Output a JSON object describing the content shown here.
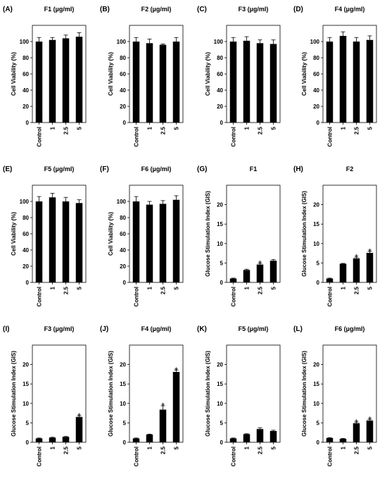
{
  "chart_data": [
    {
      "panel": "(A)",
      "title": "F1 (µg/ml)",
      "type": "bar",
      "categories": [
        "Control",
        "1",
        "2.5",
        "5"
      ],
      "values": [
        100,
        102,
        104,
        106
      ],
      "errors": [
        5,
        3,
        4,
        5
      ],
      "sig": [
        "",
        "",
        "",
        ""
      ],
      "ylabel": "Cell Viability (%)",
      "ylim": [
        0,
        120
      ],
      "yticks": [
        0,
        20,
        40,
        60,
        80,
        100
      ]
    },
    {
      "panel": "(B)",
      "title": "F2 (µg/ml)",
      "type": "bar",
      "categories": [
        "Control",
        "1",
        "2.5",
        "5"
      ],
      "values": [
        100,
        98,
        96,
        100
      ],
      "errors": [
        5,
        5,
        1,
        5
      ],
      "sig": [
        "",
        "",
        "",
        ""
      ],
      "ylabel": "Cell Viability (%)",
      "ylim": [
        0,
        120
      ],
      "yticks": [
        0,
        20,
        40,
        60,
        80,
        100
      ]
    },
    {
      "panel": "(C)",
      "title": "F3 (µg/ml)",
      "type": "bar",
      "categories": [
        "Control",
        "1",
        "2.5",
        "5"
      ],
      "values": [
        100,
        101,
        98,
        97
      ],
      "errors": [
        5,
        5,
        4,
        5
      ],
      "sig": [
        "",
        "",
        "",
        ""
      ],
      "ylabel": "Cell Viability (%)",
      "ylim": [
        0,
        120
      ],
      "yticks": [
        0,
        20,
        40,
        60,
        80,
        100
      ]
    },
    {
      "panel": "(D)",
      "title": "F4 (µg/ml)",
      "type": "bar",
      "categories": [
        "Control",
        "1",
        "2.5",
        "5"
      ],
      "values": [
        100,
        107,
        100,
        102
      ],
      "errors": [
        5,
        5,
        5,
        5
      ],
      "sig": [
        "",
        "",
        "",
        ""
      ],
      "ylabel": "Cell Viability (%)",
      "ylim": [
        0,
        120
      ],
      "yticks": [
        0,
        20,
        40,
        60,
        80,
        100
      ]
    },
    {
      "panel": "(E)",
      "title": "F5 (µg/ml)",
      "type": "bar",
      "categories": [
        "Control",
        "1",
        "2.5",
        "5"
      ],
      "values": [
        100,
        105,
        100,
        98
      ],
      "errors": [
        6,
        5,
        5,
        4
      ],
      "sig": [
        "",
        "",
        "",
        ""
      ],
      "ylabel": "Cell Viability (%)",
      "ylim": [
        0,
        120
      ],
      "yticks": [
        0,
        20,
        40,
        60,
        80,
        100
      ]
    },
    {
      "panel": "(F)",
      "title": "F6 (µg/ml)",
      "type": "bar",
      "categories": [
        "Control",
        "1",
        "2.5",
        "5"
      ],
      "values": [
        100,
        96,
        97,
        102
      ],
      "errors": [
        6,
        4,
        4,
        5
      ],
      "sig": [
        "",
        "",
        "",
        ""
      ],
      "ylabel": "Cell Viability (%)",
      "ylim": [
        0,
        120
      ],
      "yticks": [
        0,
        20,
        40,
        60,
        80,
        100
      ]
    },
    {
      "panel": "(G)",
      "title": "F1",
      "type": "bar",
      "categories": [
        "Control",
        "1",
        "2.5",
        "5"
      ],
      "values": [
        1.0,
        3.2,
        4.6,
        5.6
      ],
      "errors": [
        0.1,
        0.2,
        0.3,
        0.3
      ],
      "sig": [
        "",
        "",
        "*",
        ""
      ],
      "ylabel": "Glucose Stimulation Index (GIS)",
      "ylim": [
        0,
        25
      ],
      "yticks": [
        0,
        5,
        10,
        15,
        20
      ]
    },
    {
      "panel": "(H)",
      "title": "F2",
      "type": "bar",
      "categories": [
        "Control",
        "1",
        "2.5",
        "5"
      ],
      "values": [
        1.0,
        4.8,
        6.2,
        7.6
      ],
      "errors": [
        0.1,
        0.1,
        0.3,
        0.4
      ],
      "sig": [
        "",
        "",
        "*",
        "*"
      ],
      "ylabel": "Glucose Stimulation Index (GIS)",
      "ylim": [
        0,
        25
      ],
      "yticks": [
        0,
        5,
        10,
        15,
        20
      ]
    },
    {
      "panel": "(I)",
      "title": "F3 (µg/ml)",
      "type": "bar",
      "categories": [
        "Control",
        "1",
        "2.5",
        "5"
      ],
      "values": [
        1.0,
        1.2,
        1.4,
        6.5
      ],
      "errors": [
        0.1,
        0.1,
        0.1,
        0.3
      ],
      "sig": [
        "",
        "",
        "",
        "*"
      ],
      "ylabel": "Glucose Stimulation Index (GIS)",
      "ylim": [
        0,
        25
      ],
      "yticks": [
        0,
        5,
        10,
        15,
        20
      ]
    },
    {
      "panel": "(J)",
      "title": "F4 (µg/ml)",
      "type": "bar",
      "categories": [
        "Control",
        "1",
        "2.5",
        "5"
      ],
      "values": [
        1.0,
        2.0,
        8.4,
        18.1
      ],
      "errors": [
        0.1,
        0.1,
        1.0,
        0.5
      ],
      "sig": [
        "",
        "",
        "*",
        "*"
      ],
      "ylabel": "Glucose Stimulation Index (GIS)",
      "ylim": [
        0,
        25
      ],
      "yticks": [
        0,
        5,
        10,
        15,
        20
      ]
    },
    {
      "panel": "(K)",
      "title": "F5 (µg/ml)",
      "type": "bar",
      "categories": [
        "Control",
        "1",
        "2.5",
        "5"
      ],
      "values": [
        1.0,
        2.1,
        3.4,
        2.9
      ],
      "errors": [
        0.1,
        0.1,
        0.3,
        0.2
      ],
      "sig": [
        "",
        "",
        "",
        ""
      ],
      "ylabel": "Glucose Stimulation Index (GIS)",
      "ylim": [
        0,
        25
      ],
      "yticks": [
        0,
        5,
        10,
        15,
        20
      ]
    },
    {
      "panel": "(L)",
      "title": "F6 (µg/ml)",
      "type": "bar",
      "categories": [
        "Control",
        "1",
        "2.5",
        "5"
      ],
      "values": [
        1.1,
        0.9,
        4.9,
        5.6
      ],
      "errors": [
        0.1,
        0.1,
        0.3,
        0.3
      ],
      "sig": [
        "",
        "",
        "*",
        "*"
      ],
      "ylabel": "Glucose Stimulation Index (GIS)",
      "ylim": [
        0,
        25
      ],
      "yticks": [
        0,
        5,
        10,
        15,
        20
      ]
    }
  ]
}
